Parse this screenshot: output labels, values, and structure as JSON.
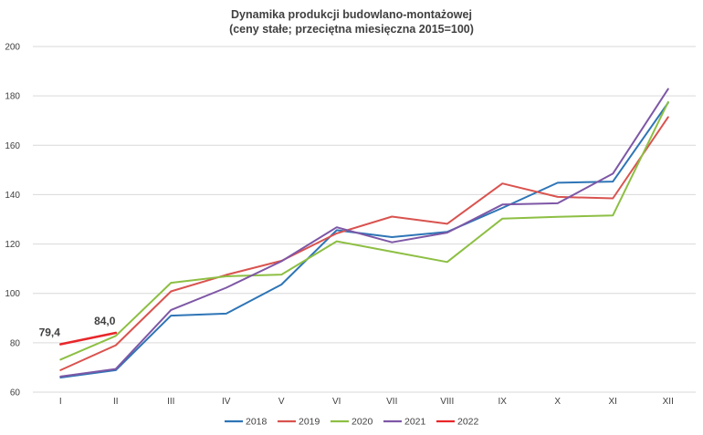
{
  "chart_data": {
    "type": "line",
    "title": "Dynamika produkcji budowlano-montażowej",
    "subtitle": "(ceny stałe; przeciętna miesięczna 2015=100)",
    "xlabel": "",
    "ylabel": "",
    "categories": [
      "I",
      "II",
      "III",
      "IV",
      "V",
      "VI",
      "VII",
      "VIII",
      "IX",
      "X",
      "XI",
      "XII"
    ],
    "ylim": [
      60,
      200
    ],
    "yticks": [
      60,
      80,
      100,
      120,
      140,
      160,
      180,
      200
    ],
    "grid": "horizontal",
    "legend_position": "bottom",
    "series": [
      {
        "name": "2018",
        "color": "#2E75B6",
        "values": [
          65.9,
          68.9,
          91.0,
          91.8,
          103.6,
          125.6,
          122.8,
          124.9,
          134.6,
          144.8,
          145.3,
          177.2
        ]
      },
      {
        "name": "2019",
        "color": "#D9534F",
        "values": [
          68.9,
          79.0,
          100.8,
          107.5,
          113.2,
          124.3,
          131.1,
          128.2,
          144.5,
          139.1,
          138.5,
          171.4
        ]
      },
      {
        "name": "2020",
        "color": "#8DBF43",
        "values": [
          73.2,
          82.8,
          104.3,
          106.9,
          107.6,
          121.1,
          116.9,
          112.7,
          130.3,
          131.0,
          131.6,
          177.5
        ]
      },
      {
        "name": "2021",
        "color": "#7E57A6",
        "values": [
          66.3,
          69.4,
          93.3,
          102.3,
          113.0,
          126.8,
          120.7,
          124.6,
          136.0,
          136.5,
          148.5,
          182.8
        ]
      },
      {
        "name": "2022",
        "color": "#E8262A",
        "values": [
          79.4,
          84.0,
          null,
          null,
          null,
          null,
          null,
          null,
          null,
          null,
          null,
          null
        ],
        "data_labels": [
          "79,4",
          "84,0"
        ]
      }
    ]
  }
}
